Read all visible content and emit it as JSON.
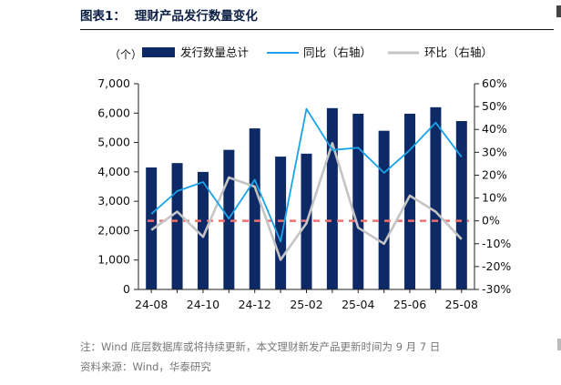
{
  "figure": {
    "number": "图表1：",
    "title": "理财产品发行数量变化",
    "note": "注：Wind 底层数据库或将持续更新，本文理财新发产品更新时间为 9 月 7 日",
    "source": "资料来源：Wind，华泰研究"
  },
  "chart_data": {
    "type": "bar",
    "unit_label": "（个）",
    "categories": [
      "24-08",
      "24-09",
      "24-10",
      "24-11",
      "24-12",
      "25-01",
      "25-02",
      "25-03",
      "25-04",
      "25-05",
      "25-06",
      "25-07",
      "25-08"
    ],
    "x_tick_labels": [
      "24-08",
      "24-10",
      "24-12",
      "25-02",
      "25-04",
      "25-06",
      "25-08"
    ],
    "series": [
      {
        "name": "发行数量总计",
        "kind": "bar",
        "axis": "left",
        "color": "#0e2a66",
        "values": [
          4150,
          4300,
          4000,
          4750,
          5480,
          4520,
          4620,
          6170,
          5980,
          5400,
          5980,
          6200,
          5730
        ]
      },
      {
        "name": "同比（右轴）",
        "kind": "line",
        "axis": "right",
        "color": "#1aa3e8",
        "values": [
          3,
          13,
          17,
          1,
          18,
          -9,
          49,
          31,
          32,
          21,
          31,
          43,
          28
        ]
      },
      {
        "name": "环比（右轴）",
        "kind": "line",
        "axis": "right",
        "color": "#c4c4c4",
        "values": [
          -4,
          4,
          -7,
          19,
          15,
          -17,
          -1,
          34,
          -3,
          -10,
          11,
          4,
          -8
        ]
      }
    ],
    "y_left": {
      "min": 0,
      "max": 7000,
      "step": 1000,
      "tick_labels": [
        "0",
        "1,000",
        "2,000",
        "3,000",
        "4,000",
        "5,000",
        "6,000",
        "7,000"
      ]
    },
    "y_right": {
      "min": -30,
      "max": 60,
      "step": 10,
      "tick_labels": [
        "-30%",
        "-20%",
        "-10%",
        "0%",
        "10%",
        "20%",
        "30%",
        "40%",
        "50%",
        "60%"
      ]
    },
    "reference_line": {
      "value": 0,
      "axis": "right",
      "color": "#f07070"
    },
    "legend_position": "top"
  }
}
